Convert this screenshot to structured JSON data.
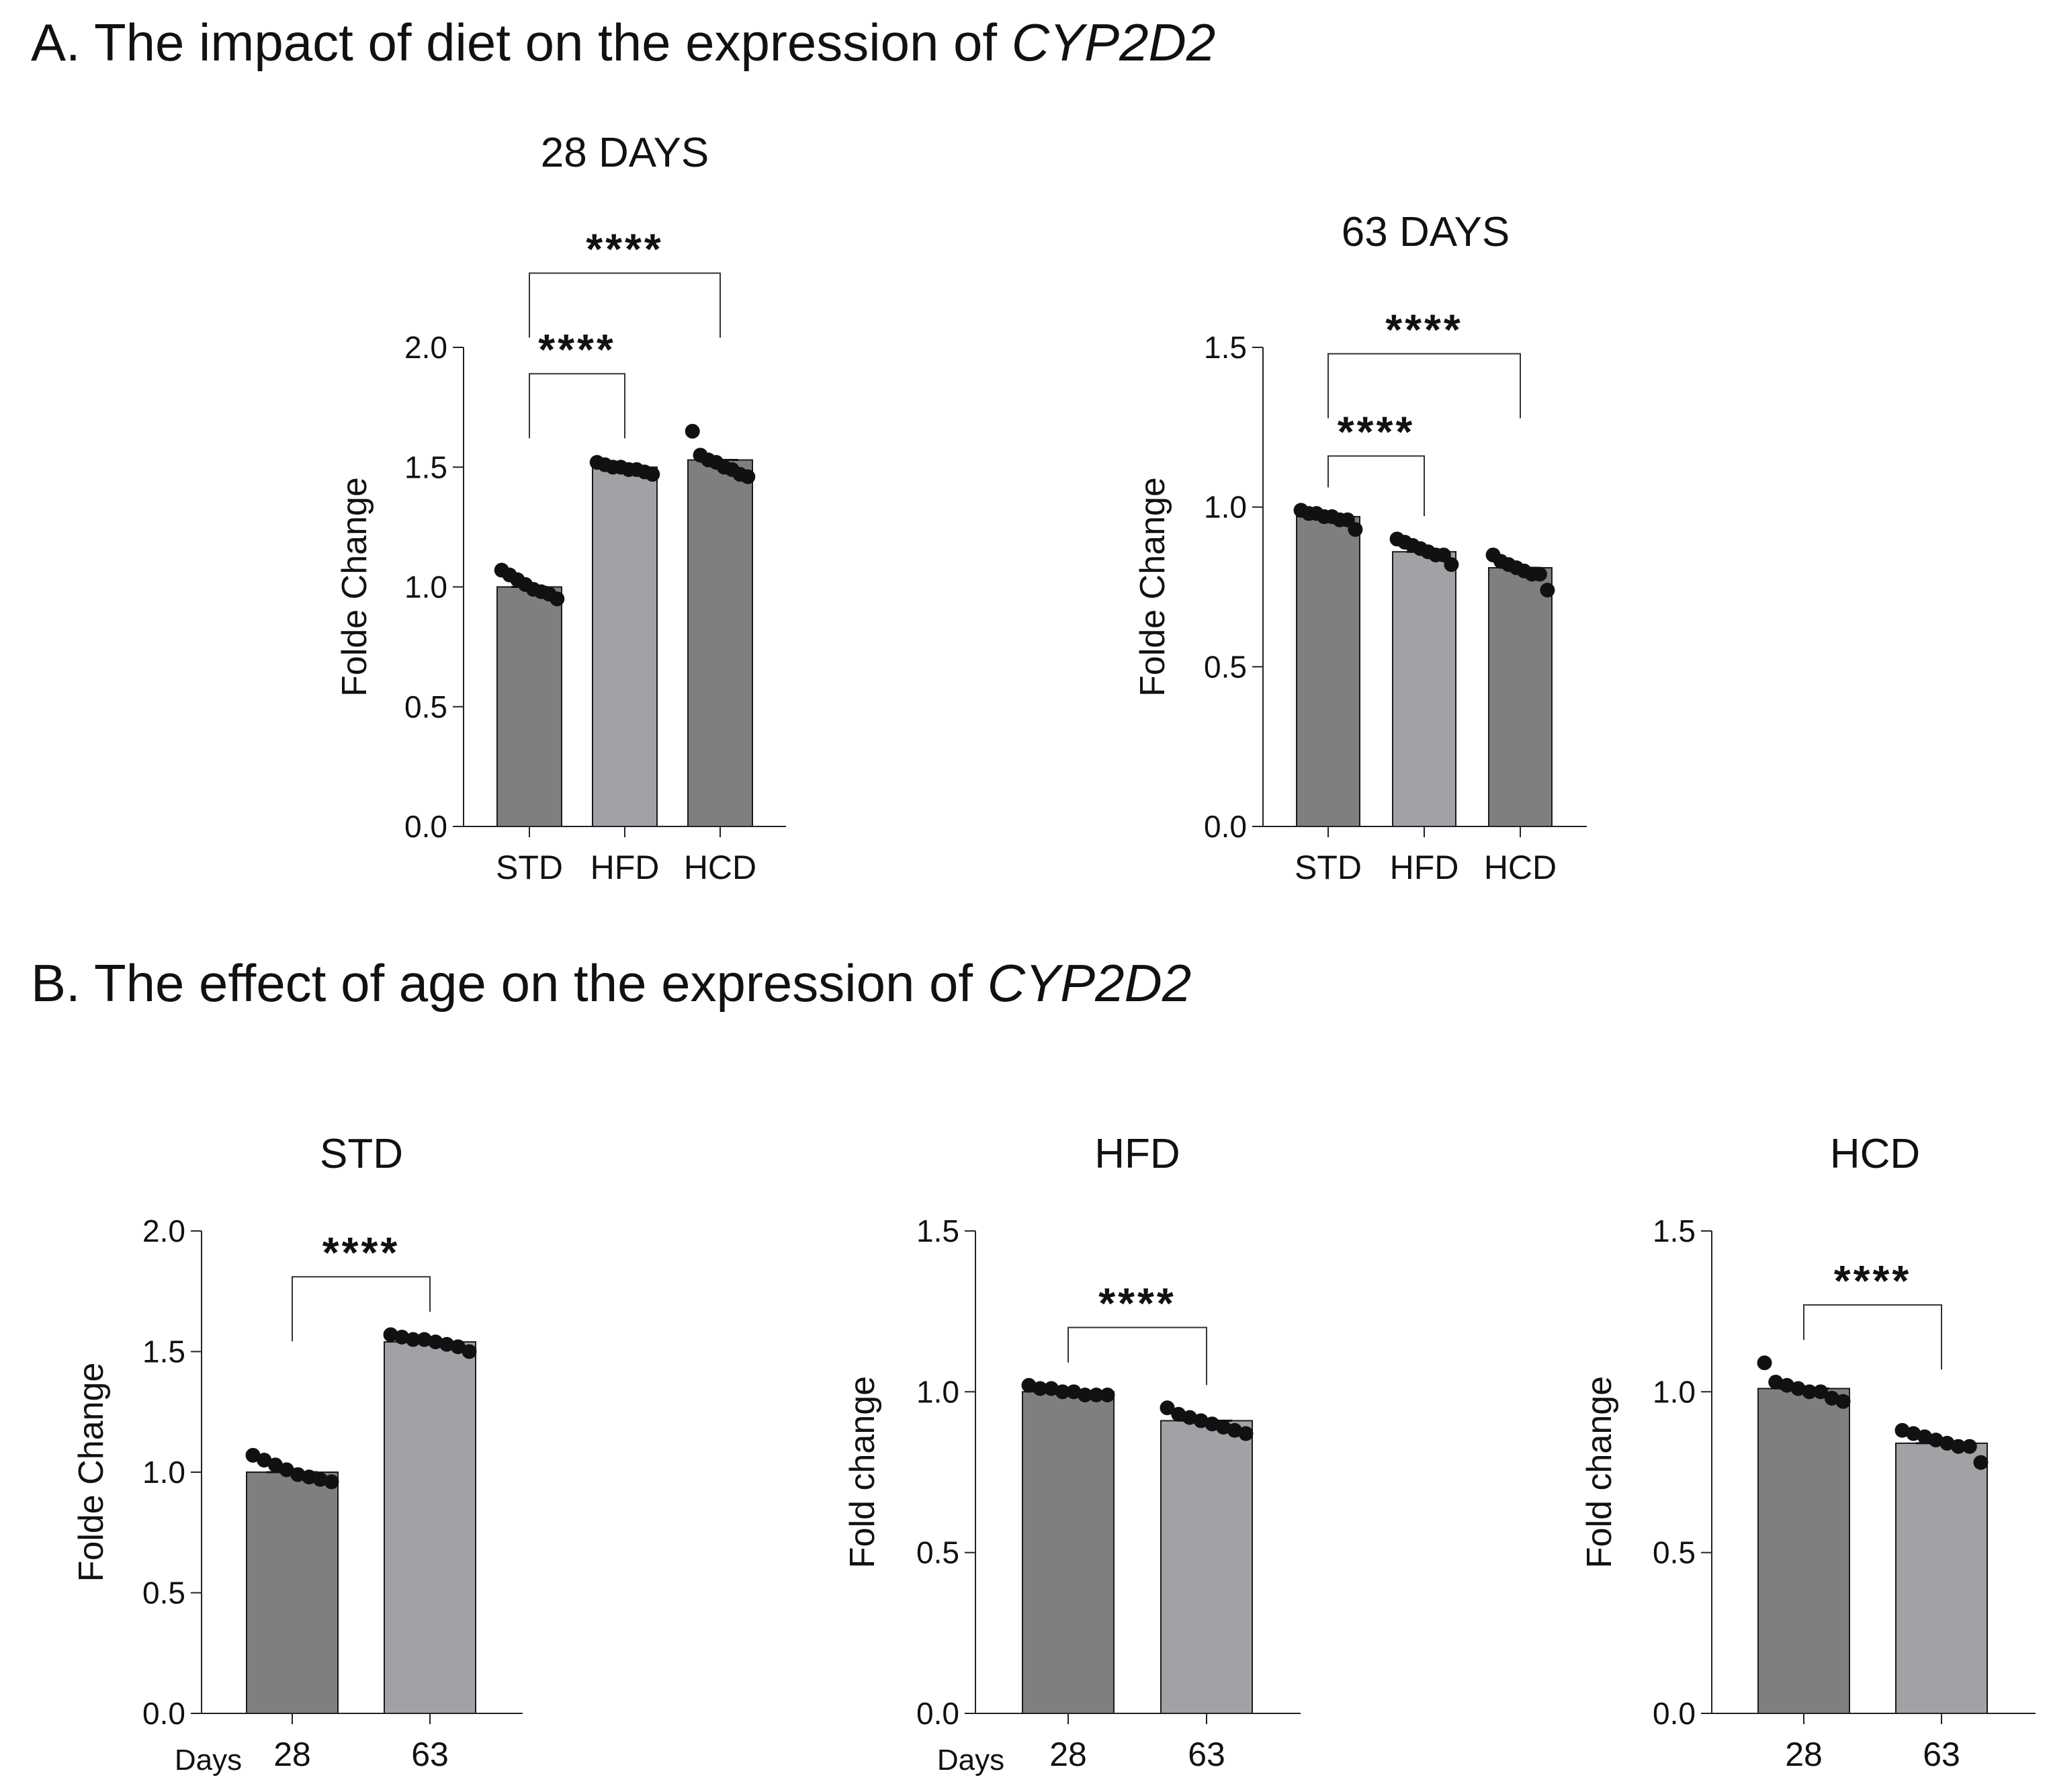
{
  "section_a": {
    "prefix": "A. The impact of diet on the expression of ",
    "gene": "CYP2D2"
  },
  "section_b": {
    "prefix": "B. The effect of age on the expression of ",
    "gene": "CYP2D2"
  },
  "colors": {
    "dark_bar": "#7f7f7f",
    "light_bar": "#a2a2a6",
    "dot": "#111111",
    "axis": "#222222"
  },
  "chart_data": [
    {
      "id": "a1",
      "type": "bar",
      "title": "28 DAYS",
      "categories": [
        "STD",
        "HFD",
        "HCD"
      ],
      "values": [
        1.0,
        1.5,
        1.53
      ],
      "bar_colors": [
        "dark",
        "light",
        "dark"
      ],
      "points": [
        [
          1.07,
          1.05,
          1.03,
          1.01,
          0.99,
          0.98,
          0.97,
          0.95
        ],
        [
          1.52,
          1.51,
          1.5,
          1.5,
          1.49,
          1.49,
          1.48,
          1.47
        ],
        [
          1.65,
          1.55,
          1.53,
          1.52,
          1.5,
          1.49,
          1.47,
          1.46
        ]
      ],
      "ylabel": "Folde Change",
      "ylim": [
        0,
        2.0
      ],
      "yticks": [
        "0.0",
        "0.5",
        "1.0",
        "1.5",
        "2.0"
      ],
      "xlabel_prefix": "",
      "brackets": [
        {
          "from": 0,
          "to": 1,
          "y": 1.89,
          "label": "****"
        },
        {
          "from": 0,
          "to": 2,
          "y": 2.31,
          "label": "****"
        }
      ]
    },
    {
      "id": "a2",
      "type": "bar",
      "title": "63 DAYS",
      "categories": [
        "STD",
        "HFD",
        "HCD"
      ],
      "values": [
        0.97,
        0.86,
        0.81
      ],
      "bar_colors": [
        "dark",
        "light",
        "dark"
      ],
      "points": [
        [
          0.99,
          0.98,
          0.98,
          0.97,
          0.97,
          0.96,
          0.96,
          0.93
        ],
        [
          0.9,
          0.89,
          0.88,
          0.87,
          0.86,
          0.85,
          0.85,
          0.82
        ],
        [
          0.85,
          0.83,
          0.82,
          0.81,
          0.8,
          0.79,
          0.79,
          0.74
        ]
      ],
      "ylabel": "Folde Change",
      "ylim": [
        0,
        1.5
      ],
      "yticks": [
        "0.0",
        "0.5",
        "1.0",
        "1.5"
      ],
      "xlabel_prefix": "",
      "brackets": [
        {
          "from": 0,
          "to": 1,
          "y": 1.16,
          "label": "****"
        },
        {
          "from": 0,
          "to": 2,
          "y": 1.48,
          "label": "****"
        }
      ]
    },
    {
      "id": "b1",
      "type": "bar",
      "title": "STD",
      "categories": [
        "28",
        "63"
      ],
      "values": [
        1.0,
        1.54
      ],
      "bar_colors": [
        "dark",
        "light"
      ],
      "points": [
        [
          1.07,
          1.05,
          1.03,
          1.01,
          0.99,
          0.98,
          0.97,
          0.96
        ],
        [
          1.57,
          1.56,
          1.55,
          1.55,
          1.54,
          1.53,
          1.52,
          1.5
        ]
      ],
      "ylabel": "Folde Change",
      "ylim": [
        0,
        2.0
      ],
      "yticks": [
        "0.0",
        "0.5",
        "1.0",
        "1.5",
        "2.0"
      ],
      "xlabel_prefix": "Days",
      "brackets": [
        {
          "from": 0,
          "to": 1,
          "y": 1.81,
          "label": "****"
        }
      ]
    },
    {
      "id": "b2",
      "type": "bar",
      "title": "HFD",
      "categories": [
        "28",
        "63"
      ],
      "values": [
        1.0,
        0.91
      ],
      "bar_colors": [
        "dark",
        "light"
      ],
      "points": [
        [
          1.02,
          1.01,
          1.01,
          1.0,
          1.0,
          0.99,
          0.99,
          0.99
        ],
        [
          0.95,
          0.93,
          0.92,
          0.91,
          0.9,
          0.89,
          0.88,
          0.87
        ]
      ],
      "ylabel": "Fold change",
      "ylim": [
        0,
        1.5
      ],
      "yticks": [
        "0.0",
        "0.5",
        "1.0",
        "1.5"
      ],
      "xlabel_prefix": "Days",
      "brackets": [
        {
          "from": 0,
          "to": 1,
          "y": 1.2,
          "label": "****"
        }
      ]
    },
    {
      "id": "b3",
      "type": "bar",
      "title": "HCD",
      "categories": [
        "28",
        "63"
      ],
      "values": [
        1.01,
        0.84
      ],
      "bar_colors": [
        "dark",
        "light"
      ],
      "points": [
        [
          1.09,
          1.03,
          1.02,
          1.01,
          1.0,
          1.0,
          0.98,
          0.97
        ],
        [
          0.88,
          0.87,
          0.86,
          0.85,
          0.84,
          0.83,
          0.83,
          0.78
        ]
      ],
      "ylabel": "Fold change",
      "ylim": [
        0,
        1.5
      ],
      "yticks": [
        "0.0",
        "0.5",
        "1.0",
        "1.5"
      ],
      "xlabel_prefix": "",
      "brackets": [
        {
          "from": 0,
          "to": 1,
          "y": 1.27,
          "label": "****"
        }
      ]
    }
  ]
}
